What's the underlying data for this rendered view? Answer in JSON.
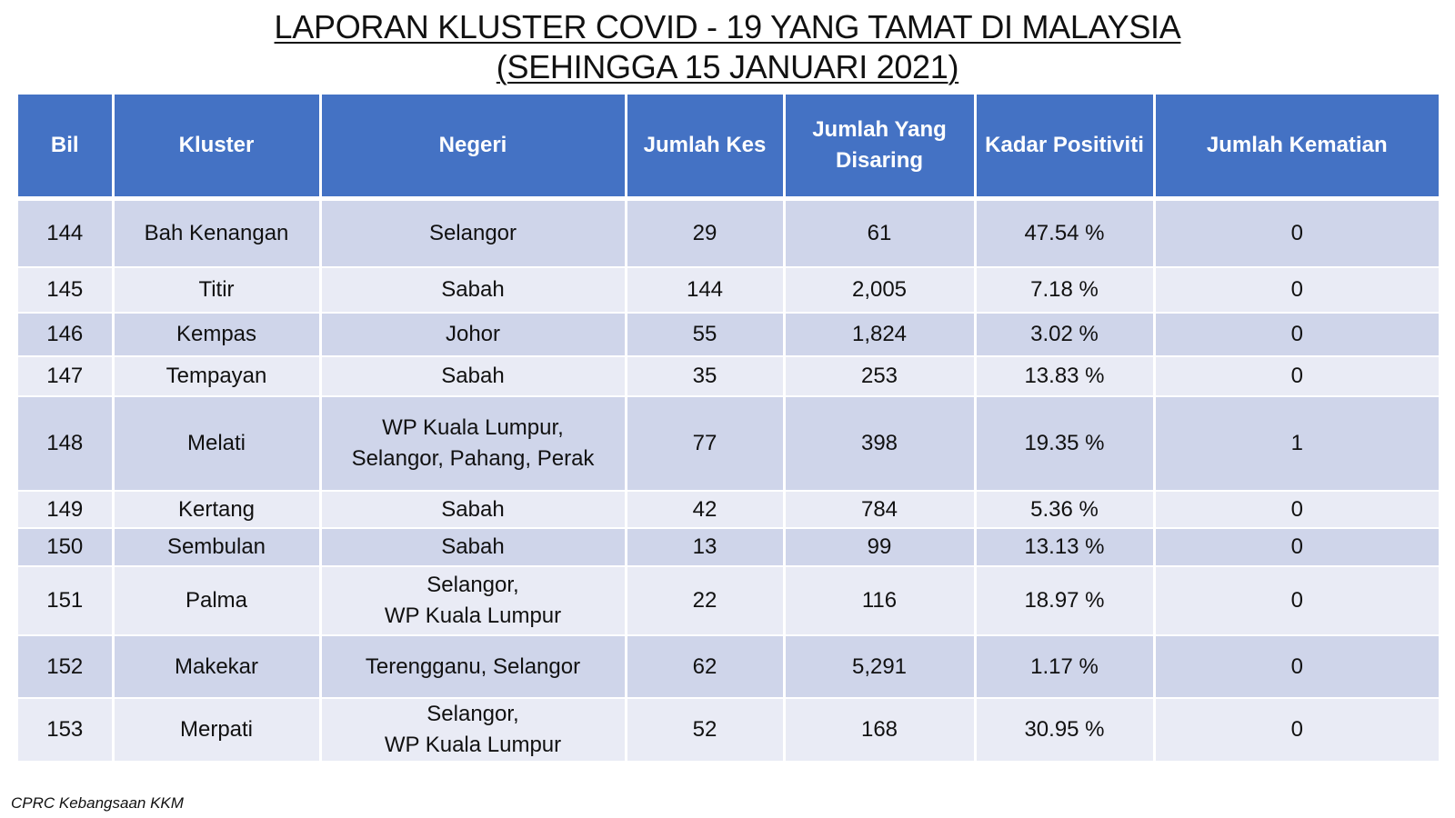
{
  "title": {
    "line1": "LAPORAN KLUSTER COVID - 19 YANG TAMAT DI MALAYSIA",
    "line2": "(SEHINGGA 15 JANUARI 2021)"
  },
  "table": {
    "headers": {
      "bil": "Bil",
      "kluster": "Kluster",
      "negeri": "Negeri",
      "jumlah_kes": "Jumlah Kes",
      "jumlah_disaring_line1": "Jumlah Yang",
      "jumlah_disaring_line2": "Disaring",
      "kadar_positiviti": "Kadar Positiviti",
      "jumlah_kematian": "Jumlah Kematian"
    },
    "rows": [
      {
        "bil": "144",
        "kluster": "Bah Kenangan",
        "negeri1": "Selangor",
        "negeri2": "",
        "kes": "29",
        "disaring": "61",
        "kadar": "47.54 %",
        "kematian": "0"
      },
      {
        "bil": "145",
        "kluster": "Titir",
        "negeri1": "Sabah",
        "negeri2": "",
        "kes": "144",
        "disaring": "2,005",
        "kadar": "7.18 %",
        "kematian": "0"
      },
      {
        "bil": "146",
        "kluster": "Kempas",
        "negeri1": "Johor",
        "negeri2": "",
        "kes": "55",
        "disaring": "1,824",
        "kadar": "3.02 %",
        "kematian": "0"
      },
      {
        "bil": "147",
        "kluster": "Tempayan",
        "negeri1": "Sabah",
        "negeri2": "",
        "kes": "35",
        "disaring": "253",
        "kadar": "13.83 %",
        "kematian": "0"
      },
      {
        "bil": "148",
        "kluster": "Melati",
        "negeri1": "WP Kuala Lumpur,",
        "negeri2": "Selangor, Pahang, Perak",
        "kes": "77",
        "disaring": "398",
        "kadar": "19.35 %",
        "kematian": "1"
      },
      {
        "bil": "149",
        "kluster": "Kertang",
        "negeri1": "Sabah",
        "negeri2": "",
        "kes": "42",
        "disaring": "784",
        "kadar": "5.36 %",
        "kematian": "0"
      },
      {
        "bil": "150",
        "kluster": "Sembulan",
        "negeri1": "Sabah",
        "negeri2": "",
        "kes": "13",
        "disaring": "99",
        "kadar": "13.13 %",
        "kematian": "0"
      },
      {
        "bil": "151",
        "kluster": "Palma",
        "negeri1": "Selangor,",
        "negeri2": "WP Kuala Lumpur",
        "kes": "22",
        "disaring": "116",
        "kadar": "18.97 %",
        "kematian": "0"
      },
      {
        "bil": "152",
        "kluster": "Makekar",
        "negeri1": "Terengganu, Selangor",
        "negeri2": "",
        "kes": "62",
        "disaring": "5,291",
        "kadar": "1.17 %",
        "kematian": "0"
      },
      {
        "bil": "153",
        "kluster": "Merpati",
        "negeri1": "Selangor,",
        "negeri2": "WP Kuala Lumpur",
        "kes": "52",
        "disaring": "168",
        "kadar": "30.95 %",
        "kematian": "0"
      }
    ]
  },
  "footnote": "CPRC Kebangsaan KKM",
  "colors": {
    "header_bg": "#4472c4",
    "row_dark": "#cfd5ea",
    "row_light": "#e9ebf5"
  }
}
